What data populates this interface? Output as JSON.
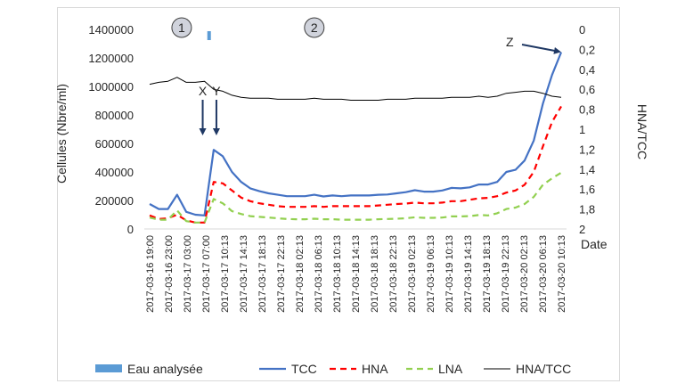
{
  "chart_data": {
    "type": "line",
    "ylabel_left": "Cellules (Nbre/ml)",
    "ylabel_right": "HNA/TCC",
    "xlabel": "Date",
    "ylim_left": [
      0,
      1400000
    ],
    "ylim_right_inverted": [
      0,
      2
    ],
    "yticks_left": [
      "0",
      "200000",
      "400000",
      "600000",
      "800000",
      "1000000",
      "1200000",
      "1400000"
    ],
    "yticks_right": [
      "0",
      "0,2",
      "0,4",
      "0,6",
      "0,8",
      "1",
      "1,2",
      "1,4",
      "1,6",
      "1,8",
      "2"
    ],
    "x_ticks": [
      "2017-03-16 19:00",
      "2017-03-16 23:00",
      "2017-03-17 03:00",
      "2017-03-17 07:00",
      "2017-03-17 10:13",
      "2017-03-17 14:13",
      "2017-03-17 18:13",
      "2017-03-17 22:13",
      "2017-03-18 02:13",
      "2017-03-18 06:13",
      "2017-03-18 10:13",
      "2017-03-18 14:13",
      "2017-03-18 18:13",
      "2017-03-18 22:13",
      "2017-03-19 02:13",
      "2017-03-19 06:13",
      "2017-03-19 10:13",
      "2017-03-19 14:13",
      "2017-03-19 18:13",
      "2017-03-19 22:13",
      "2017-03-20 02:13",
      "2017-03-20 06:13",
      "2017-03-20 10:13"
    ],
    "series": [
      {
        "name": "TCC",
        "axis": "left",
        "color": "#4472c4",
        "dash": "solid",
        "values": [
          175000,
          140000,
          140000,
          240000,
          120000,
          100000,
          95000,
          555000,
          510000,
          400000,
          330000,
          285000,
          265000,
          250000,
          240000,
          230000,
          230000,
          230000,
          240000,
          228000,
          235000,
          230000,
          235000,
          235000,
          235000,
          240000,
          242000,
          250000,
          258000,
          272000,
          262000,
          262000,
          270000,
          288000,
          285000,
          292000,
          312000,
          312000,
          330000,
          400000,
          415000,
          480000,
          620000,
          880000,
          1080000,
          1240000
        ]
      },
      {
        "name": "HNA",
        "axis": "left",
        "color": "#ff0000",
        "dash": "dashed",
        "values": [
          95000,
          70000,
          75000,
          100000,
          60000,
          45000,
          45000,
          330000,
          320000,
          270000,
          220000,
          195000,
          180000,
          170000,
          160000,
          155000,
          155000,
          155000,
          160000,
          155000,
          160000,
          160000,
          160000,
          160000,
          160000,
          165000,
          170000,
          175000,
          178000,
          185000,
          180000,
          180000,
          185000,
          195000,
          195000,
          205000,
          215000,
          218000,
          230000,
          255000,
          270000,
          310000,
          400000,
          580000,
          750000,
          860000
        ]
      },
      {
        "name": "LNA",
        "axis": "left",
        "color": "#92d050",
        "dash": "dashed",
        "values": [
          80000,
          65000,
          65000,
          130000,
          55000,
          45000,
          45000,
          210000,
          180000,
          125000,
          105000,
          90000,
          85000,
          80000,
          75000,
          70000,
          68000,
          68000,
          72000,
          68000,
          68000,
          65000,
          65000,
          65000,
          65000,
          68000,
          70000,
          72000,
          75000,
          82000,
          78000,
          78000,
          80000,
          88000,
          88000,
          90000,
          98000,
          95000,
          110000,
          140000,
          150000,
          175000,
          225000,
          310000,
          355000,
          395000
        ]
      },
      {
        "name": "HNA/TCC",
        "axis": "right",
        "color": "#000000",
        "dash": "solid",
        "values": [
          0.55,
          0.53,
          0.52,
          0.48,
          0.53,
          0.53,
          0.52,
          0.6,
          0.62,
          0.66,
          0.68,
          0.69,
          0.69,
          0.69,
          0.7,
          0.7,
          0.7,
          0.7,
          0.69,
          0.7,
          0.7,
          0.7,
          0.71,
          0.71,
          0.71,
          0.71,
          0.7,
          0.7,
          0.7,
          0.69,
          0.69,
          0.69,
          0.69,
          0.68,
          0.68,
          0.68,
          0.67,
          0.68,
          0.67,
          0.64,
          0.63,
          0.62,
          0.62,
          0.64,
          0.67,
          0.68
        ]
      }
    ],
    "analysed_water": {
      "name": "Eau analysée",
      "color": "#5b9bd5",
      "at_index": 6.5
    },
    "phases": [
      {
        "label": "1",
        "at_index": 3.5
      },
      {
        "label": "2",
        "at_index": 18
      }
    ],
    "annotations": [
      {
        "label": "X",
        "at_index": 5.8
      },
      {
        "label": "Y",
        "at_index": 7.3
      },
      {
        "label": "Z",
        "at_index": 45
      }
    ],
    "legend": [
      {
        "label": "Eau analysée",
        "kind": "bar",
        "color": "#5b9bd5"
      },
      {
        "label": "TCC",
        "kind": "solid",
        "color": "#4472c4"
      },
      {
        "label": "HNA",
        "kind": "dashed",
        "color": "#ff0000"
      },
      {
        "label": "LNA",
        "kind": "dashed",
        "color": "#92d050"
      },
      {
        "label": "HNA/TCC",
        "kind": "solid-thin",
        "color": "#000000"
      }
    ],
    "legend_position": "bottom"
  }
}
